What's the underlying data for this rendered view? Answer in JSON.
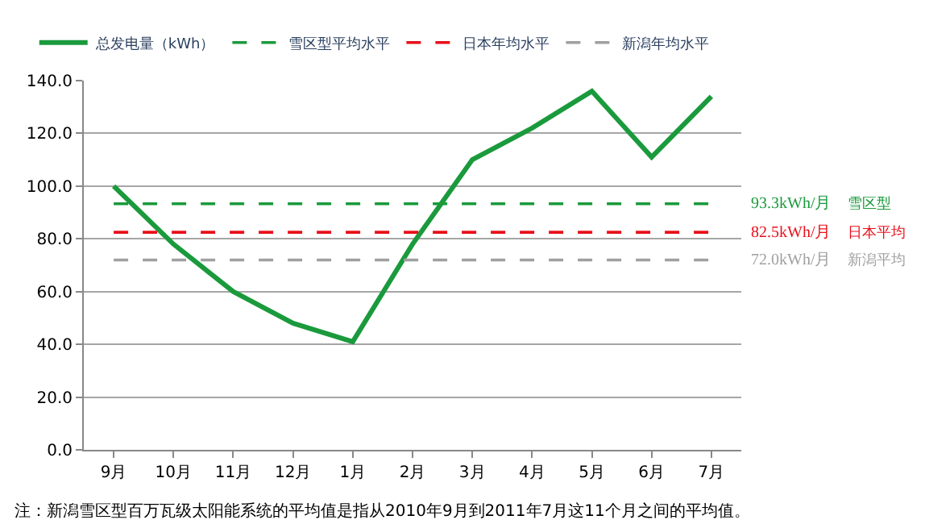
{
  "chart_data": {
    "type": "line",
    "categories": [
      "9月",
      "10月",
      "11月",
      "12月",
      "1月",
      "2月",
      "3月",
      "4月",
      "5月",
      "6月",
      "7月"
    ],
    "series": [
      {
        "name": "总发电量（kWh）",
        "color": "#1a9a3c",
        "values": [
          100,
          78,
          60,
          48,
          41,
          78,
          110,
          122,
          136,
          111,
          134
        ],
        "line_style": "solid"
      },
      {
        "name": "雪区型平均水平",
        "color": "#1a9a3c",
        "values": [
          93.3,
          93.3,
          93.3,
          93.3,
          93.3,
          93.3,
          93.3,
          93.3,
          93.3,
          93.3,
          93.3
        ],
        "line_style": "dashed"
      },
      {
        "name": "日本年均水平",
        "color": "#e8101a",
        "values": [
          82.5,
          82.5,
          82.5,
          82.5,
          82.5,
          82.5,
          82.5,
          82.5,
          82.5,
          82.5,
          82.5
        ],
        "line_style": "dashed"
      },
      {
        "name": "新潟年均水平",
        "color": "#a0a0a0",
        "values": [
          72.0,
          72.0,
          72.0,
          72.0,
          72.0,
          72.0,
          72.0,
          72.0,
          72.0,
          72.0,
          72.0
        ],
        "line_style": "dashed"
      }
    ],
    "annotations": [
      "93.3kWh/月",
      "雪区型",
      "82.5kWh/月",
      "日本平均",
      "72.0kWh/月",
      "新潟平均",
      "注：新潟雪区型百万瓦级太阳能系统的平均值是指从2010年9月到2011年7月这11个月之间的平均值。"
    ],
    "ylim": [
      0,
      140
    ],
    "yticks": [
      {
        "value": 0,
        "label": "0.0"
      },
      {
        "value": 20,
        "label": "20.0"
      },
      {
        "value": 40,
        "label": "40.0"
      },
      {
        "value": 60,
        "label": "60.0"
      },
      {
        "value": 80,
        "label": "80.0"
      },
      {
        "value": 100,
        "label": "100.0"
      },
      {
        "value": 120,
        "label": "120.0"
      },
      {
        "value": 140,
        "label": "140.0"
      }
    ],
    "grid": "y",
    "legend": "top",
    "marker": "none"
  }
}
